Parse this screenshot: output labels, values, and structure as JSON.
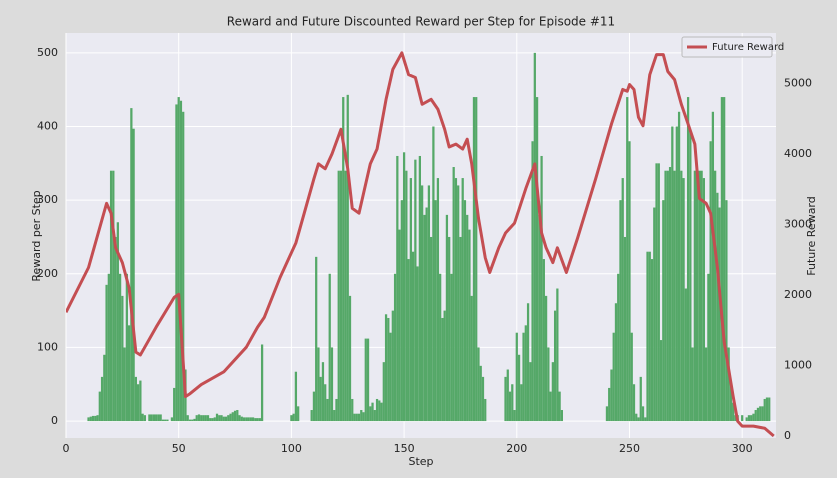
{
  "chart_data": {
    "type": "bar-line",
    "title": "Reward and Future Discounted Reward per Step for Episode #11",
    "xlabel": "Step",
    "ylabel": "Reward per Step",
    "y2label": "Future Reward",
    "xlim": [
      0,
      315
    ],
    "xticks": [
      0,
      50,
      100,
      150,
      200,
      250,
      300
    ],
    "ylim": [
      -23,
      527
    ],
    "yticks": [
      0,
      100,
      200,
      300,
      400,
      500
    ],
    "y2lim": [
      -28,
      5716
    ],
    "y2ticks": [
      0,
      1000,
      2000,
      3000,
      4000,
      5000
    ],
    "grid": true,
    "legend": "upper right",
    "series": [
      {
        "color": "#55a868",
        "values": [
          0,
          0,
          0,
          0,
          0,
          0,
          0,
          0,
          0,
          0,
          5,
          6,
          7,
          7,
          8,
          40,
          60,
          90,
          185,
          200,
          340,
          340,
          250,
          270,
          200,
          170,
          100,
          200,
          130,
          425,
          397,
          60,
          50,
          55,
          10,
          8,
          0,
          9,
          9,
          9,
          9,
          9,
          9,
          2,
          2,
          2,
          0,
          5,
          45,
          430,
          440,
          435,
          420,
          70,
          8,
          2,
          2,
          3,
          8,
          9,
          8,
          8,
          8,
          8,
          4,
          4,
          5,
          10,
          8,
          8,
          6,
          6,
          8,
          10,
          12,
          14,
          15,
          8,
          6,
          5,
          5,
          5,
          5,
          5,
          4,
          4,
          4,
          104,
          0,
          0,
          0,
          0,
          0,
          0,
          0,
          0,
          0,
          0,
          0,
          0,
          8,
          10,
          67,
          20,
          0,
          0,
          0,
          0,
          0,
          15,
          40,
          223,
          100,
          60,
          80,
          50,
          30,
          200,
          100,
          15,
          30,
          340,
          340,
          440,
          340,
          443,
          170,
          30,
          10,
          10,
          10,
          15,
          12,
          112,
          112,
          20,
          25,
          15,
          30,
          28,
          25,
          80,
          145,
          140,
          120,
          150,
          200,
          360,
          260,
          300,
          365,
          340,
          220,
          330,
          230,
          355,
          210,
          360,
          320,
          280,
          290,
          320,
          250,
          400,
          300,
          330,
          200,
          140,
          150,
          280,
          250,
          200,
          345,
          330,
          320,
          250,
          330,
          300,
          280,
          260,
          170,
          440,
          440,
          100,
          75,
          60,
          30,
          0,
          0,
          0,
          0,
          0,
          0,
          0,
          0,
          60,
          70,
          40,
          50,
          15,
          120,
          90,
          50,
          120,
          130,
          160,
          80,
          380,
          500,
          440,
          280,
          360,
          220,
          170,
          100,
          40,
          80,
          150,
          180,
          40,
          15,
          0,
          0,
          0,
          0,
          0,
          0,
          0,
          0,
          0,
          0,
          0,
          0,
          0,
          0,
          0,
          0,
          0,
          0,
          0,
          20,
          45,
          70,
          120,
          160,
          200,
          300,
          330,
          250,
          440,
          380,
          120,
          50,
          10,
          5,
          60,
          20,
          5,
          230,
          230,
          220,
          290,
          350,
          350,
          110,
          300,
          340,
          340,
          345,
          400,
          340,
          400,
          420,
          340,
          330,
          180,
          440,
          395,
          100,
          340,
          340,
          340,
          340,
          330,
          100,
          200,
          380,
          420,
          340,
          310,
          290,
          440,
          440,
          300,
          100,
          50,
          25,
          8,
          8,
          0,
          8,
          0,
          5,
          8,
          8,
          10,
          15,
          18,
          20,
          20,
          30,
          32,
          32
        ]
      },
      {
        "name": "Future Reward",
        "color": "#c44e52",
        "axis": "y2",
        "x": [
          0,
          10,
          18,
          20,
          22,
          25,
          28,
          31,
          33,
          40,
          48,
          50,
          53,
          55,
          60,
          70,
          80,
          85,
          88,
          95,
          102,
          110,
          112,
          115,
          118,
          122,
          125,
          127,
          130,
          135,
          138,
          142,
          145,
          149,
          152,
          155,
          158,
          162,
          165,
          168,
          170,
          173,
          176,
          178,
          180,
          183,
          186,
          188,
          192,
          195,
          199,
          204,
          208,
          211,
          213,
          216,
          218,
          222,
          227,
          235,
          242,
          247,
          249,
          250,
          252,
          254,
          256,
          259,
          262,
          265,
          267,
          270,
          273,
          276,
          279,
          281,
          284,
          286,
          289,
          292,
          296,
          298,
          300,
          305,
          310,
          314
        ],
        "values": [
          1755,
          2390,
          3300,
          3160,
          2670,
          2460,
          2100,
          1190,
          1150,
          1545,
          1966,
          2010,
          560,
          600,
          730,
          910,
          1260,
          1545,
          1685,
          2250,
          2740,
          3650,
          3860,
          3790,
          4000,
          4350,
          3790,
          3230,
          3160,
          3860,
          4070,
          4775,
          5200,
          5435,
          5125,
          5085,
          4705,
          4775,
          4635,
          4350,
          4100,
          4140,
          4070,
          4210,
          3860,
          3090,
          2530,
          2320,
          2670,
          2880,
          3020,
          3510,
          3860,
          2880,
          2670,
          2460,
          2670,
          2320,
          2810,
          3650,
          4425,
          4915,
          4890,
          4985,
          4915,
          4520,
          4400,
          5125,
          5410,
          5410,
          5170,
          5055,
          4705,
          4425,
          4140,
          3370,
          3300,
          3160,
          2390,
          1335,
          560,
          210,
          140,
          140,
          110,
          0
        ]
      }
    ]
  }
}
